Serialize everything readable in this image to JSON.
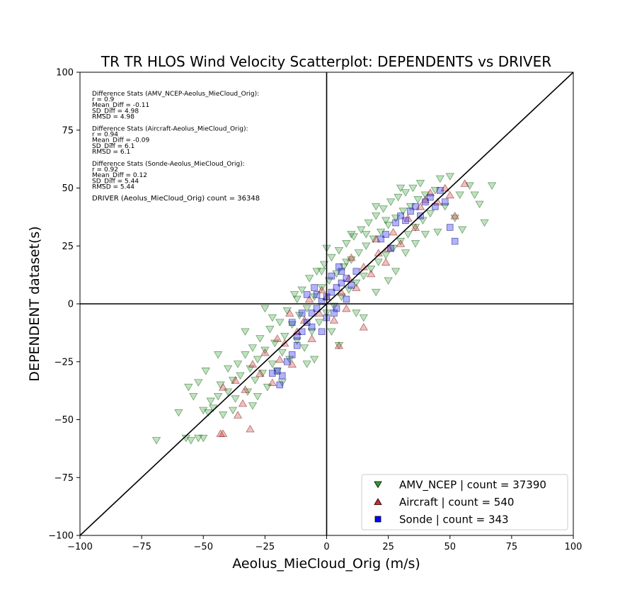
{
  "chart_data": {
    "type": "scatter",
    "title": "TR TR HLOS Wind Velocity Scatterplot: DEPENDENTS vs DRIVER",
    "xlabel": "Aeolus_MieCloud_Orig (m/s)",
    "ylabel": "DEPENDENT dataset(s)",
    "xlim": [
      -100,
      100
    ],
    "ylim": [
      -100,
      100
    ],
    "xticks": [
      -100,
      -75,
      -50,
      -25,
      0,
      25,
      50,
      75,
      100
    ],
    "yticks": [
      -100,
      -75,
      -50,
      -25,
      0,
      25,
      50,
      75,
      100
    ],
    "grid": false,
    "reference_lines": [
      "x = 0",
      "y = 0",
      "y = x"
    ],
    "legend_placement": "lower-right",
    "annotation_lines": [
      "Difference Stats (AMV_NCEP-Aeolus_MieCloud_Orig):",
      "r = 0.9",
      "Mean_Diff = -0.11",
      "SD_Diff = 4.98",
      "RMSD = 4.98",
      "",
      "Difference Stats (Aircraft-Aeolus_MieCloud_Orig):",
      "r = 0.94",
      "Mean_Diff = -0.09",
      "SD_Diff = 6.1",
      "RMSD = 6.1",
      "",
      "Difference Stats (Sonde-Aeolus_MieCloud_Orig):",
      "r = 0.92",
      "Mean_Diff = 0.12",
      "SD_Diff = 5.44",
      "RMSD = 5.44"
    ],
    "driver_count_text": "DRIVER (Aeolus_MieCloud_Orig) count = 36348",
    "series": [
      {
        "name": "AMV_NCEP | count = 37390",
        "marker": "triangle-down",
        "color": "#2ca02c",
        "edge": "#1a5c1a",
        "points": [
          [
            -69,
            -59
          ],
          [
            -57,
            -58
          ],
          [
            -55,
            -59
          ],
          [
            -52,
            -58
          ],
          [
            -50,
            -58
          ],
          [
            -56,
            -36
          ],
          [
            -54,
            -40
          ],
          [
            -52,
            -34
          ],
          [
            -50,
            -46
          ],
          [
            -48,
            -47
          ],
          [
            -49,
            -29
          ],
          [
            -47,
            -42
          ],
          [
            -46,
            -45
          ],
          [
            -44,
            -40
          ],
          [
            -43,
            -35
          ],
          [
            -42,
            -48
          ],
          [
            -40,
            -38
          ],
          [
            -40,
            -28
          ],
          [
            -38,
            -33
          ],
          [
            -37,
            -41
          ],
          [
            -36,
            -26
          ],
          [
            -35,
            -31
          ],
          [
            -33,
            -22
          ],
          [
            -32,
            -38
          ],
          [
            -31,
            -28
          ],
          [
            -30,
            -19
          ],
          [
            -29,
            -33
          ],
          [
            -28,
            -24
          ],
          [
            -27,
            -15
          ],
          [
            -26,
            -30
          ],
          [
            -25,
            -20
          ],
          [
            -24,
            -36
          ],
          [
            -23,
            -11
          ],
          [
            -22,
            -26
          ],
          [
            -21,
            -17
          ],
          [
            -20,
            -29
          ],
          [
            -19,
            -8
          ],
          [
            -18,
            -21
          ],
          [
            -17,
            -14
          ],
          [
            -16,
            -3
          ],
          [
            -15,
            -24
          ],
          [
            -14,
            -9
          ],
          [
            -13,
            4
          ],
          [
            -12,
            -16
          ],
          [
            -11,
            -5
          ],
          [
            -10,
            6
          ],
          [
            -9,
            -19
          ],
          [
            -8,
            -2
          ],
          [
            -7,
            11
          ],
          [
            -6,
            -12
          ],
          [
            -5,
            3
          ],
          [
            -4,
            14
          ],
          [
            -3,
            -8
          ],
          [
            -2,
            7
          ],
          [
            -1,
            17
          ],
          [
            0,
            -4
          ],
          [
            1,
            10
          ],
          [
            2,
            20
          ],
          [
            3,
            -1
          ],
          [
            4,
            13
          ],
          [
            5,
            23
          ],
          [
            6,
            3
          ],
          [
            7,
            16
          ],
          [
            8,
            26
          ],
          [
            9,
            6
          ],
          [
            10,
            19
          ],
          [
            11,
            29
          ],
          [
            12,
            9
          ],
          [
            13,
            22
          ],
          [
            14,
            32
          ],
          [
            15,
            12
          ],
          [
            16,
            25
          ],
          [
            17,
            35
          ],
          [
            18,
            15
          ],
          [
            19,
            28
          ],
          [
            20,
            38
          ],
          [
            21,
            18
          ],
          [
            22,
            31
          ],
          [
            23,
            41
          ],
          [
            24,
            21
          ],
          [
            25,
            34
          ],
          [
            26,
            44
          ],
          [
            27,
            24
          ],
          [
            28,
            37
          ],
          [
            29,
            46
          ],
          [
            30,
            27
          ],
          [
            31,
            40
          ],
          [
            32,
            48
          ],
          [
            33,
            30
          ],
          [
            34,
            42
          ],
          [
            35,
            50
          ],
          [
            36,
            33
          ],
          [
            37,
            45
          ],
          [
            38,
            52
          ],
          [
            39,
            36
          ],
          [
            40,
            47
          ],
          [
            42,
            39
          ],
          [
            44,
            49
          ],
          [
            45,
            31
          ],
          [
            46,
            54
          ],
          [
            48,
            42
          ],
          [
            50,
            55
          ],
          [
            52,
            37
          ],
          [
            54,
            47
          ],
          [
            55,
            32
          ],
          [
            58,
            51
          ],
          [
            60,
            47
          ],
          [
            62,
            43
          ],
          [
            64,
            35
          ],
          [
            67,
            51
          ],
          [
            -44,
            -22
          ],
          [
            -38,
            -46
          ],
          [
            -33,
            -12
          ],
          [
            -28,
            -40
          ],
          [
            -22,
            -6
          ],
          [
            -18,
            -34
          ],
          [
            -12,
            2
          ],
          [
            -8,
            -26
          ],
          [
            -2,
            14
          ],
          [
            2,
            -12
          ],
          [
            8,
            18
          ],
          [
            12,
            -4
          ],
          [
            16,
            30
          ],
          [
            20,
            5
          ],
          [
            24,
            36
          ],
          [
            28,
            14
          ],
          [
            32,
            22
          ],
          [
            36,
            26
          ],
          [
            40,
            30
          ],
          [
            -60,
            -47
          ],
          [
            -5,
            -24
          ],
          [
            0,
            24
          ],
          [
            5,
            -18
          ],
          [
            10,
            30
          ],
          [
            15,
            -6
          ],
          [
            20,
            42
          ],
          [
            25,
            10
          ],
          [
            -25,
            -2
          ],
          [
            -30,
            -44
          ],
          [
            30,
            50
          ]
        ]
      },
      {
        "name": "Aircraft | count = 540",
        "marker": "triangle-up",
        "color": "#d62728",
        "edge": "#6b1010",
        "points": [
          [
            -43,
            -56
          ],
          [
            -42,
            -56
          ],
          [
            -31,
            -54
          ],
          [
            -36,
            -48
          ],
          [
            -34,
            -43
          ],
          [
            -42,
            -36
          ],
          [
            -37,
            -33
          ],
          [
            -33,
            -37
          ],
          [
            -27,
            -30
          ],
          [
            -22,
            -34
          ],
          [
            -25,
            -21
          ],
          [
            -19,
            -24
          ],
          [
            -17,
            -17
          ],
          [
            -14,
            -26
          ],
          [
            -12,
            -12
          ],
          [
            -9,
            -7
          ],
          [
            -6,
            -15
          ],
          [
            -3,
            -4
          ],
          [
            0,
            3
          ],
          [
            3,
            -7
          ],
          [
            6,
            5
          ],
          [
            9,
            11
          ],
          [
            12,
            7
          ],
          [
            15,
            16
          ],
          [
            18,
            13
          ],
          [
            21,
            22
          ],
          [
            24,
            18
          ],
          [
            27,
            31
          ],
          [
            30,
            26
          ],
          [
            33,
            37
          ],
          [
            36,
            33
          ],
          [
            38,
            42
          ],
          [
            40,
            45
          ],
          [
            42,
            48
          ],
          [
            45,
            44
          ],
          [
            48,
            50
          ],
          [
            50,
            47
          ],
          [
            52,
            38
          ],
          [
            56,
            52
          ],
          [
            -7,
            2
          ],
          [
            5,
            -18
          ],
          [
            15,
            -10
          ],
          [
            -15,
            -4
          ],
          [
            10,
            20
          ],
          [
            20,
            28
          ],
          [
            -30,
            -26
          ],
          [
            -20,
            -15
          ],
          [
            25,
            24
          ],
          [
            8,
            -2
          ],
          [
            -2,
            6
          ]
        ]
      },
      {
        "name": "Sonde | count = 343",
        "marker": "square",
        "color": "#0000ff",
        "edge": "#00005a",
        "points": [
          [
            -20,
            -29
          ],
          [
            -22,
            -30
          ],
          [
            -18,
            -31
          ],
          [
            -19,
            -35
          ],
          [
            -16,
            -25
          ],
          [
            -14,
            -22
          ],
          [
            -12,
            -18
          ],
          [
            -10,
            -12
          ],
          [
            -8,
            -8
          ],
          [
            -6,
            -4
          ],
          [
            -4,
            -2
          ],
          [
            -2,
            1
          ],
          [
            0,
            3
          ],
          [
            2,
            5
          ],
          [
            4,
            7
          ],
          [
            6,
            9
          ],
          [
            8,
            11
          ],
          [
            10,
            8
          ],
          [
            -10,
            -4
          ],
          [
            -6,
            -10
          ],
          [
            -4,
            4
          ],
          [
            0,
            -6
          ],
          [
            4,
            -2
          ],
          [
            6,
            14
          ],
          [
            -2,
            -12
          ],
          [
            2,
            12
          ],
          [
            8,
            2
          ],
          [
            -14,
            -8
          ],
          [
            -8,
            4
          ],
          [
            12,
            14
          ],
          [
            28,
            35
          ],
          [
            30,
            38
          ],
          [
            32,
            36
          ],
          [
            34,
            40
          ],
          [
            36,
            42
          ],
          [
            38,
            38
          ],
          [
            40,
            44
          ],
          [
            42,
            46
          ],
          [
            44,
            42
          ],
          [
            46,
            49
          ],
          [
            52,
            27
          ],
          [
            50,
            33
          ],
          [
            48,
            44
          ],
          [
            22,
            28
          ],
          [
            24,
            30
          ],
          [
            26,
            24
          ],
          [
            -5,
            7
          ],
          [
            3,
            -4
          ],
          [
            -12,
            -14
          ],
          [
            5,
            16
          ]
        ]
      }
    ]
  }
}
